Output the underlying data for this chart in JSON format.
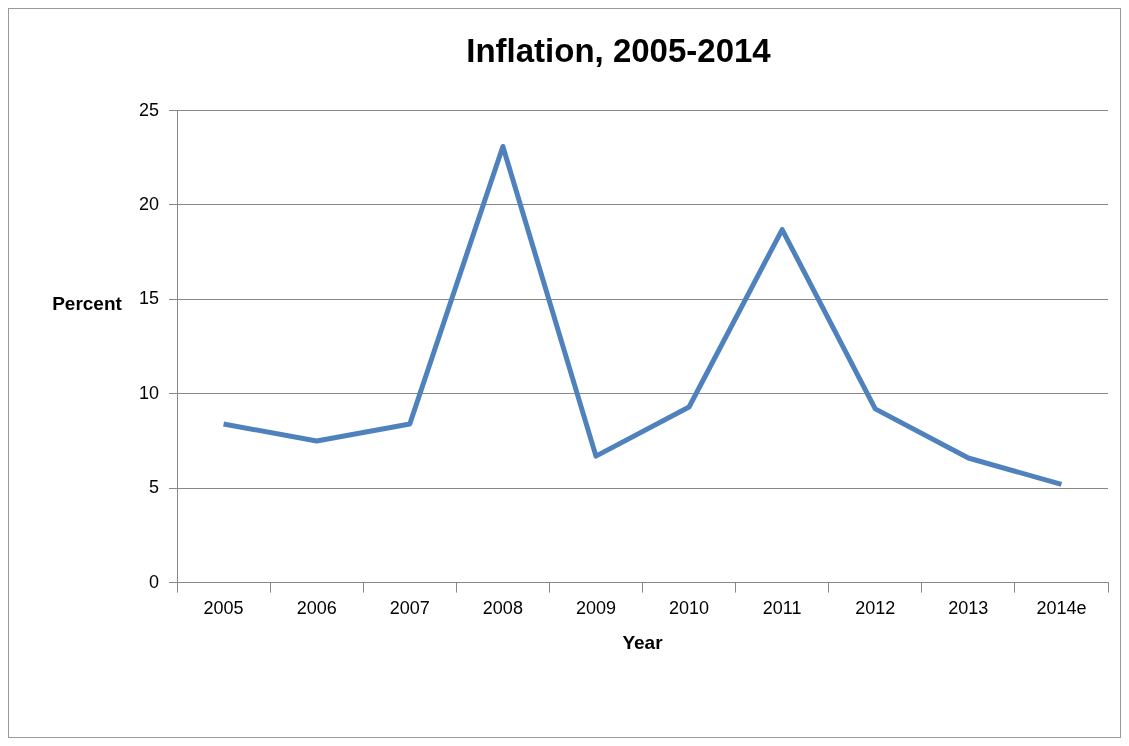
{
  "chart_data": {
    "type": "line",
    "title": "Inflation, 2005-2014",
    "xlabel": "Year",
    "ylabel": "Percent",
    "categories": [
      "2005",
      "2006",
      "2007",
      "2008",
      "2009",
      "2010",
      "2011",
      "2012",
      "2013",
      "2014e"
    ],
    "series": [
      {
        "color": "#4f81bd",
        "values": [
          8.4,
          7.5,
          8.4,
          23.1,
          6.7,
          9.3,
          18.7,
          9.2,
          6.6,
          5.2
        ]
      }
    ],
    "ylim": [
      0,
      25
    ],
    "yticks": [
      0,
      5,
      10,
      15,
      20,
      25
    ],
    "grid": "y",
    "legend": false,
    "marker": "none"
  }
}
